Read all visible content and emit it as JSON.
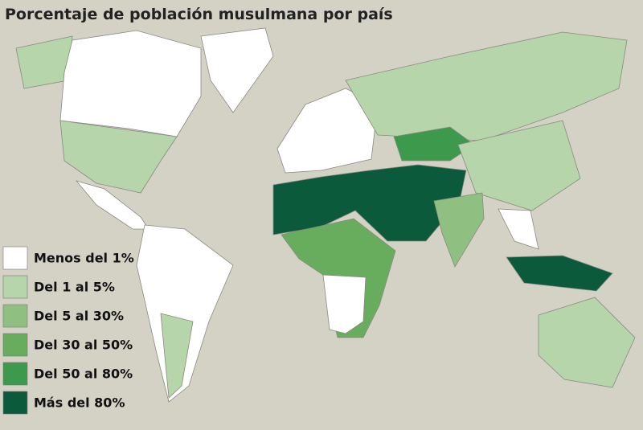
{
  "title": "Porcentaje de población musulmana por país",
  "legend": [
    {
      "label": "Menos del 1%",
      "color": "#ffffff"
    },
    {
      "label": "Del 1 al 5%",
      "color": "#b7d5aa"
    },
    {
      "label": "Del 5 al 30%",
      "color": "#8fc081"
    },
    {
      "label": "Del 30 al 50%",
      "color": "#68ad5d"
    },
    {
      "label": "Del 50 al 80%",
      "color": "#3d9a4c"
    },
    {
      "label": "Más del 80%",
      "color": "#0c5a3c"
    }
  ]
}
